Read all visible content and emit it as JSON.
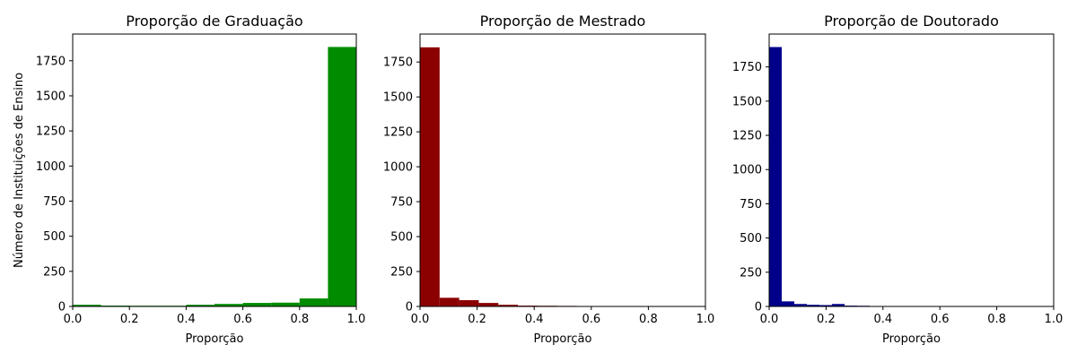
{
  "chart_data": [
    {
      "type": "bar",
      "title": "Proporção de Graduação",
      "xlabel": "Proporção",
      "ylabel": "Número de Instituições de Ensino",
      "xlim": [
        0,
        1.0
      ],
      "ylim": [
        0,
        1940
      ],
      "xticks": [
        "0.0",
        "0.2",
        "0.4",
        "0.6",
        "0.8",
        "1.0"
      ],
      "yticks": [
        "0",
        "250",
        "500",
        "750",
        "1000",
        "1250",
        "1500",
        "1750"
      ],
      "color": "#008b00",
      "bins": [
        {
          "x0": 0.0,
          "x1": 0.1,
          "value": 12
        },
        {
          "x0": 0.1,
          "x1": 0.2,
          "value": 6
        },
        {
          "x0": 0.2,
          "x1": 0.3,
          "value": 5
        },
        {
          "x0": 0.3,
          "x1": 0.4,
          "value": 5
        },
        {
          "x0": 0.4,
          "x1": 0.5,
          "value": 12
        },
        {
          "x0": 0.5,
          "x1": 0.6,
          "value": 18
        },
        {
          "x0": 0.6,
          "x1": 0.7,
          "value": 25
        },
        {
          "x0": 0.7,
          "x1": 0.8,
          "value": 27
        },
        {
          "x0": 0.8,
          "x1": 0.9,
          "value": 57
        },
        {
          "x0": 0.9,
          "x1": 1.0,
          "value": 1848
        }
      ]
    },
    {
      "type": "bar",
      "title": "Proporção de Mestrado",
      "xlabel": "Proporção",
      "ylabel": "",
      "xlim": [
        0,
        1.0
      ],
      "ylim": [
        0,
        1950
      ],
      "xticks": [
        "0.0",
        "0.2",
        "0.4",
        "0.6",
        "0.8",
        "1.0"
      ],
      "yticks": [
        "0",
        "250",
        "500",
        "750",
        "1000",
        "1250",
        "1500",
        "1750"
      ],
      "color": "#8b0000",
      "bins": [
        {
          "x0": 0.0,
          "x1": 0.0686,
          "value": 1855
        },
        {
          "x0": 0.0686,
          "x1": 0.1372,
          "value": 62
        },
        {
          "x0": 0.1372,
          "x1": 0.2058,
          "value": 45
        },
        {
          "x0": 0.2058,
          "x1": 0.2744,
          "value": 25
        },
        {
          "x0": 0.2744,
          "x1": 0.343,
          "value": 12
        },
        {
          "x0": 0.343,
          "x1": 0.4116,
          "value": 6
        },
        {
          "x0": 0.4116,
          "x1": 0.4802,
          "value": 5
        },
        {
          "x0": 0.4802,
          "x1": 0.5488,
          "value": 4
        },
        {
          "x0": 0.5488,
          "x1": 0.6174,
          "value": 3
        },
        {
          "x0": 0.6174,
          "x1": 0.686,
          "value": 3
        }
      ]
    },
    {
      "type": "bar",
      "title": "Proporção de Doutorado",
      "xlabel": "Proporção",
      "ylabel": "",
      "xlim": [
        0,
        1.0
      ],
      "ylim": [
        0,
        1990
      ],
      "xticks": [
        "0.0",
        "0.2",
        "0.4",
        "0.6",
        "0.8",
        "1.0"
      ],
      "yticks": [
        "0",
        "250",
        "500",
        "750",
        "1000",
        "1250",
        "1500",
        "1750"
      ],
      "color": "#00008b",
      "bins": [
        {
          "x0": 0.0,
          "x1": 0.0442,
          "value": 1895
        },
        {
          "x0": 0.0442,
          "x1": 0.0884,
          "value": 37
        },
        {
          "x0": 0.0884,
          "x1": 0.1326,
          "value": 18
        },
        {
          "x0": 0.1326,
          "x1": 0.1768,
          "value": 12
        },
        {
          "x0": 0.1768,
          "x1": 0.221,
          "value": 10
        },
        {
          "x0": 0.221,
          "x1": 0.2652,
          "value": 18
        },
        {
          "x0": 0.2652,
          "x1": 0.3094,
          "value": 6
        },
        {
          "x0": 0.3094,
          "x1": 0.3536,
          "value": 5
        },
        {
          "x0": 0.3536,
          "x1": 0.3978,
          "value": 3
        },
        {
          "x0": 0.3978,
          "x1": 0.442,
          "value": 3
        }
      ]
    }
  ]
}
